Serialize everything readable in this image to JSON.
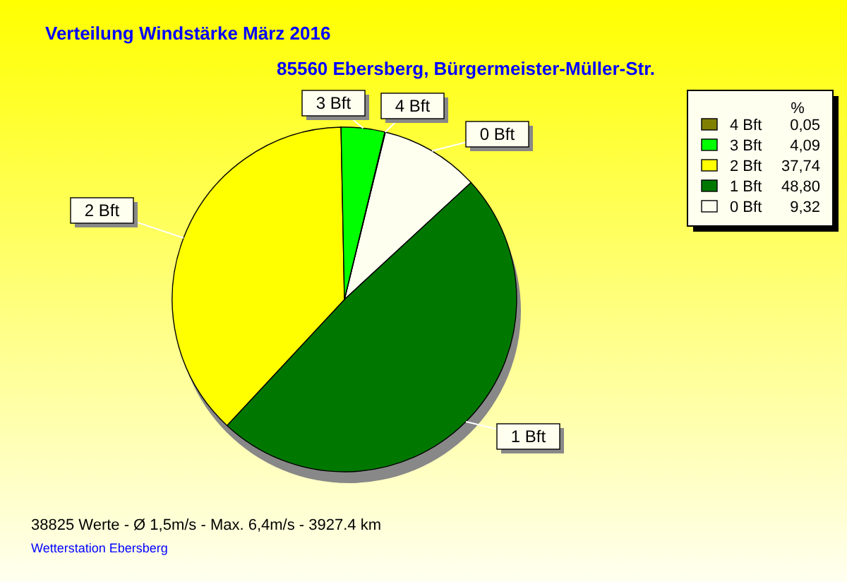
{
  "chart_data": {
    "type": "pie",
    "title": "Verteilung Windstärke  März 2016",
    "subtitle": "85560 Ebersberg, Bürgermeister-Müller-Str.",
    "categories": [
      "0 Bft",
      "1 Bft",
      "2 Bft",
      "3 Bft",
      "4 Bft"
    ],
    "values": [
      9.32,
      48.8,
      37.74,
      4.09,
      0.05
    ],
    "value_labels": [
      "9,32",
      "48,80",
      "37,74",
      "4,09",
      "0,05"
    ],
    "colors": [
      "#fffff0",
      "#007800",
      "#ffff00",
      "#00ff00",
      "#808000"
    ],
    "legend": "top right",
    "legend_title": "%",
    "annotations": [
      "38825 Werte   -   Ø 1,5m/s  -  Max. 6,4m/s   -   3927.4 km",
      "Wetterstation Ebersberg"
    ]
  }
}
